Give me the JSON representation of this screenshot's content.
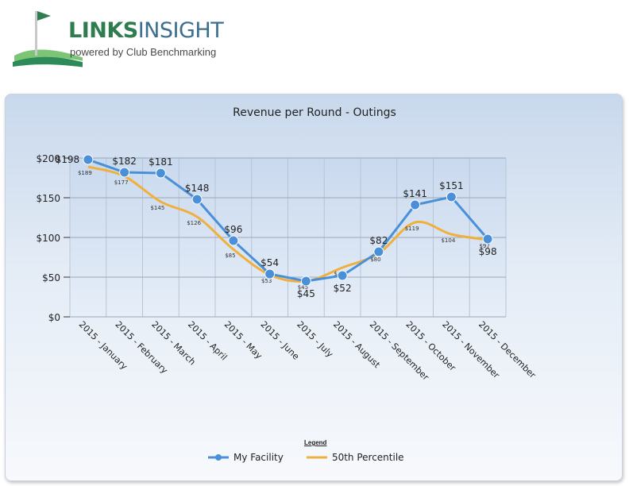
{
  "brand": {
    "title_bold": "LINKS",
    "title_light": "INSIGHT",
    "subtitle": "powered by Club Benchmarking"
  },
  "chart_data": {
    "type": "line",
    "title": "Revenue per Round - Outings",
    "categories": [
      "2015 - January",
      "2015 - February",
      "2015 - March",
      "2015 - April",
      "2015 - May",
      "2015 - June",
      "2015 - July",
      "2015 - August",
      "2015 - September",
      "2015 - October",
      "2015 - November",
      "2015 - December"
    ],
    "ylim": [
      0,
      200
    ],
    "yticks": [
      0,
      50,
      100,
      150,
      200
    ],
    "ytick_labels": [
      "$0",
      "$50",
      "$100",
      "$150",
      "$200"
    ],
    "grid": true,
    "series": [
      {
        "name": "My Facility",
        "color": "#4a90d9",
        "values": [
          198,
          182,
          181,
          148,
          96,
          54,
          45,
          52,
          82,
          141,
          151,
          98
        ],
        "labels": [
          "$198",
          "$182",
          "$181",
          "$148",
          "$96",
          "$54",
          "$45",
          "$52",
          "$82",
          "$141",
          "$151",
          "$98"
        ]
      },
      {
        "name": "50th Percentile",
        "color": "#f0b040",
        "values": [
          189,
          177,
          145,
          126,
          85,
          53,
          45,
          62,
          80,
          119,
          104,
          97
        ],
        "labels": [
          "$189",
          "$177",
          "$145",
          "$126",
          "$85",
          "$53",
          "$45",
          "$62",
          "$80",
          "$119",
          "$104",
          "$97"
        ]
      }
    ],
    "legend_title": "Legend",
    "legend_position": "bottom"
  }
}
